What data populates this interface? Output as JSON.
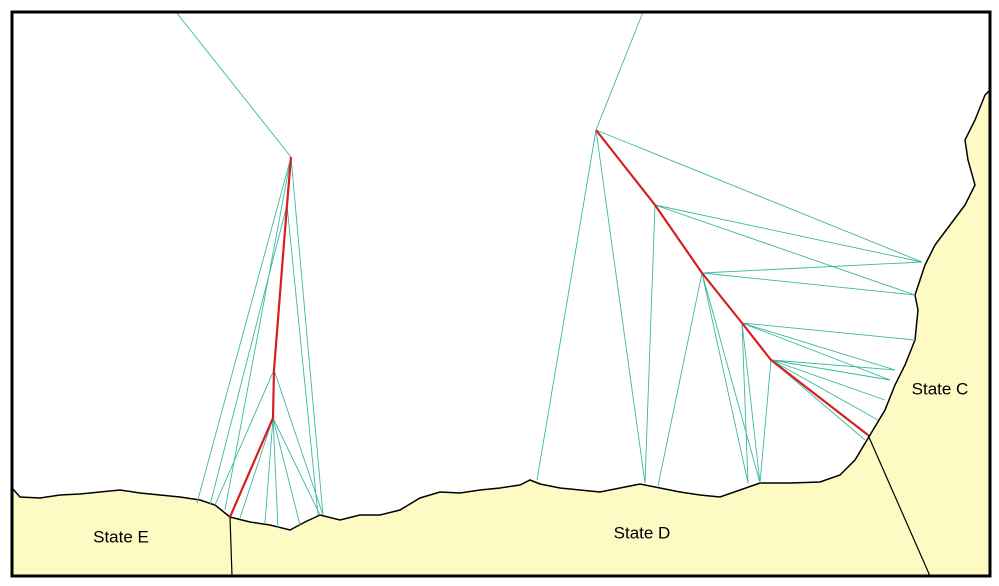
{
  "labels": {
    "state_e": "State E",
    "state_d": "State D",
    "state_c": "State C"
  }
}
